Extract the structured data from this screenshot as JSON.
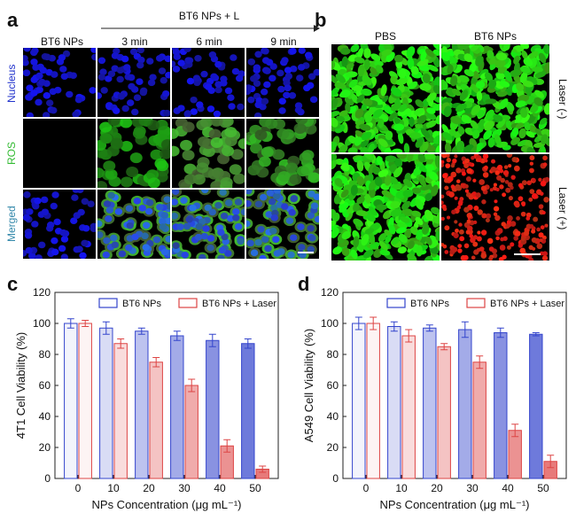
{
  "panel_a": {
    "label": "a",
    "column_headers": [
      "BT6 NPs",
      "3 min",
      "6 min",
      "9 min"
    ],
    "group_header": "BT6 NPs + L",
    "row_labels": [
      "Nucleus",
      "ROS",
      "Merged"
    ],
    "row_label_colors": [
      "#2233cc",
      "#33bb33",
      "#3388aa"
    ]
  },
  "panel_b": {
    "label": "b",
    "column_headers": [
      "PBS",
      "BT6 NPs"
    ],
    "row_labels": [
      "Laser (-)",
      "Laser (+)"
    ]
  },
  "chart_data": [
    {
      "panel": "c",
      "type": "bar",
      "categories": [
        "0",
        "10",
        "20",
        "30",
        "40",
        "50"
      ],
      "xlabel": "NPs Concentration (μg mL⁻¹)",
      "ylabel": "4T1 Cell Viability (%)",
      "ylim": [
        0,
        120
      ],
      "yticks": [
        "0",
        "20",
        "40",
        "60",
        "80",
        "100",
        "120"
      ],
      "legend_position": "top",
      "series": [
        {
          "name": "BT6 NPs",
          "color": "#3344cc",
          "values": [
            100,
            97,
            95,
            92,
            89,
            87
          ],
          "errors": [
            3,
            4,
            2,
            3,
            4,
            3
          ]
        },
        {
          "name": "BT6 NPs + Laser",
          "color": "#dd4444",
          "values": [
            100,
            87,
            75,
            60,
            21,
            6
          ],
          "errors": [
            2,
            3,
            3,
            4,
            4,
            2
          ]
        }
      ]
    },
    {
      "panel": "d",
      "type": "bar",
      "categories": [
        "0",
        "10",
        "20",
        "30",
        "40",
        "50"
      ],
      "xlabel": "NPs Concentration (μg mL⁻¹)",
      "ylabel": "A549 Cell Viability (%)",
      "ylim": [
        0,
        120
      ],
      "yticks": [
        "0",
        "20",
        "40",
        "60",
        "80",
        "100",
        "120"
      ],
      "legend_position": "top",
      "series": [
        {
          "name": "BT6 NPs",
          "color": "#3344cc",
          "values": [
            100,
            98,
            97,
            96,
            94,
            93
          ],
          "errors": [
            4,
            3,
            2,
            5,
            3,
            1
          ]
        },
        {
          "name": "BT6 NPs + Laser",
          "color": "#dd4444",
          "values": [
            100,
            92,
            85,
            75,
            31,
            11
          ],
          "errors": [
            4,
            4,
            2,
            4,
            4,
            4
          ]
        }
      ]
    }
  ]
}
